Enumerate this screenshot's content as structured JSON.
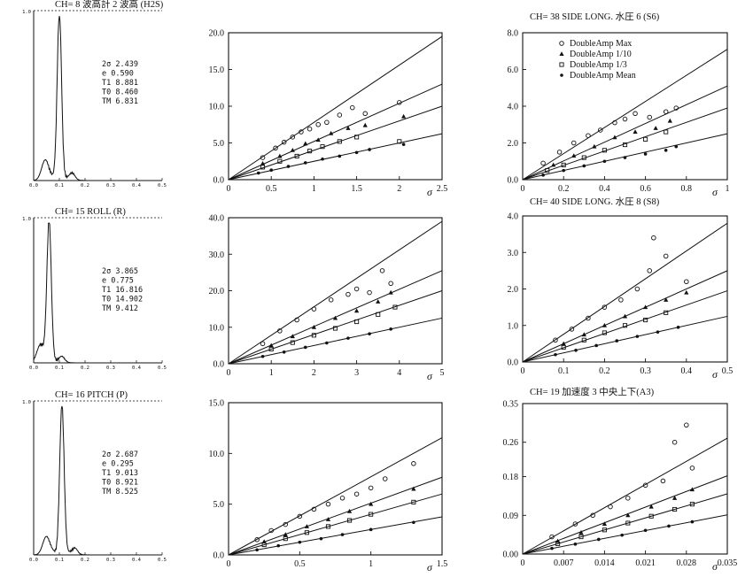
{
  "figure": {
    "spectra": [
      {
        "title": "CH= 8 波高計 2  波高 (H2S)",
        "ytop": "1.0",
        "stats": [
          "2σ 2.439",
          "e 0.590",
          "T1 8.881",
          "T0 8.460",
          "TM 6.831"
        ],
        "xticks": [
          "0.0",
          "0.1",
          "0.2",
          "0.3",
          "0.4",
          "0.5"
        ],
        "peak_freq": 0.1
      },
      {
        "title": "CH= 15 ROLL (R)",
        "ytop": "1.0",
        "stats": [
          "2σ 3.865",
          "e 0.775",
          "T1 16.816",
          "T0 14.902",
          "TM 9.412"
        ],
        "xticks": [
          "0.0",
          "0.1",
          "0.2",
          "0.3",
          "0.4",
          "0.5"
        ],
        "peak_freq": 0.06
      },
      {
        "title": "CH= 16 PITCH (P)",
        "ytop": "1.0",
        "stats": [
          "2σ 2.687",
          "e 0.295",
          "T1 9.013",
          "T0 8.921",
          "TM 8.525"
        ],
        "xticks": [
          "0.0",
          "0.1",
          "0.2",
          "0.3",
          "0.4",
          "0.5"
        ],
        "peak_freq": 0.11
      }
    ],
    "legend": [
      "DoubleAmp Max",
      "DoubleAmp 1/10",
      "DoubleAmp 1/3",
      "DoubleAmp Mean"
    ]
  },
  "chart_data": [
    {
      "type": "scatter",
      "title": "",
      "xlabel": "σ",
      "xlim": [
        0,
        2.5
      ],
      "ylim": [
        0,
        20
      ],
      "xticks": [
        "0",
        "0.5",
        "1",
        "1.5",
        "2",
        "2.5"
      ],
      "yticks": [
        "0.0",
        "5.0",
        "10.0",
        "15.0",
        "20.0"
      ],
      "lines": [
        {
          "name": "DoubleAmp Max",
          "slope": 7.8
        },
        {
          "name": "DoubleAmp 1/10",
          "slope": 5.2
        },
        {
          "name": "DoubleAmp 1/3",
          "slope": 4.0
        },
        {
          "name": "DoubleAmp Mean",
          "slope": 2.5
        }
      ],
      "series": [
        {
          "name": "DoubleAmp Max",
          "marker": "circle-open",
          "x": [
            0.4,
            0.55,
            0.65,
            0.75,
            0.85,
            0.95,
            1.05,
            1.15,
            1.3,
            1.45,
            1.6,
            2.0
          ],
          "y": [
            3.0,
            4.3,
            5.1,
            5.8,
            6.5,
            6.9,
            7.5,
            7.8,
            8.8,
            9.8,
            9.0,
            10.5
          ]
        },
        {
          "name": "DoubleAmp 1/10",
          "marker": "triangle",
          "x": [
            0.4,
            0.6,
            0.75,
            0.9,
            1.05,
            1.2,
            1.4,
            1.6,
            2.05
          ],
          "y": [
            2.2,
            3.2,
            4.0,
            4.9,
            5.4,
            6.3,
            7.0,
            7.4,
            8.6
          ]
        },
        {
          "name": "DoubleAmp 1/3",
          "marker": "square-open",
          "x": [
            0.4,
            0.6,
            0.8,
            0.95,
            1.1,
            1.3,
            1.5,
            2.0
          ],
          "y": [
            1.7,
            2.5,
            3.2,
            3.9,
            4.5,
            5.2,
            5.8,
            5.2
          ]
        },
        {
          "name": "DoubleAmp Mean",
          "marker": "dot",
          "x": [
            0.35,
            0.5,
            0.7,
            0.9,
            1.1,
            1.3,
            1.5,
            1.65,
            2.05
          ],
          "y": [
            0.9,
            1.3,
            1.8,
            2.3,
            2.8,
            3.2,
            3.7,
            4.1,
            4.8
          ]
        }
      ]
    },
    {
      "type": "scatter",
      "title": "CH= 38  SIDE LONG. 水圧 6 (S6)",
      "xlabel": "σ",
      "xlim": [
        0,
        1
      ],
      "ylim": [
        0,
        8
      ],
      "xticks": [
        "0",
        "0.2",
        "0.4",
        "0.6",
        "0.8",
        "1"
      ],
      "yticks": [
        "0.0",
        "2.0",
        "4.0",
        "6.0",
        "8.0"
      ],
      "lines": [
        {
          "name": "DoubleAmp Max",
          "slope": 7.1
        },
        {
          "name": "DoubleAmp 1/10",
          "slope": 5.1
        },
        {
          "name": "DoubleAmp 1/3",
          "slope": 3.9
        },
        {
          "name": "DoubleAmp Mean",
          "slope": 2.5
        }
      ],
      "series": [
        {
          "name": "DoubleAmp Max",
          "marker": "circle-open",
          "x": [
            0.1,
            0.18,
            0.25,
            0.32,
            0.38,
            0.45,
            0.5,
            0.55,
            0.62,
            0.7,
            0.75
          ],
          "y": [
            0.9,
            1.5,
            2.0,
            2.4,
            2.7,
            3.1,
            3.3,
            3.6,
            3.4,
            3.7,
            3.9
          ]
        },
        {
          "name": "DoubleAmp 1/10",
          "marker": "triangle",
          "x": [
            0.15,
            0.25,
            0.35,
            0.45,
            0.55,
            0.65,
            0.72
          ],
          "y": [
            0.8,
            1.3,
            1.8,
            2.3,
            2.6,
            2.8,
            3.2
          ]
        },
        {
          "name": "DoubleAmp 1/3",
          "marker": "square-open",
          "x": [
            0.12,
            0.2,
            0.3,
            0.4,
            0.5,
            0.6,
            0.7
          ],
          "y": [
            0.5,
            0.8,
            1.2,
            1.6,
            1.9,
            2.2,
            2.6
          ]
        },
        {
          "name": "DoubleAmp Mean",
          "marker": "dot",
          "x": [
            0.1,
            0.2,
            0.3,
            0.4,
            0.5,
            0.6,
            0.7,
            0.75
          ],
          "y": [
            0.25,
            0.5,
            0.75,
            1.0,
            1.2,
            1.4,
            1.6,
            1.8
          ]
        }
      ]
    },
    {
      "type": "scatter",
      "title": "",
      "xlabel": "σ",
      "xlim": [
        0,
        5
      ],
      "ylim": [
        0,
        40
      ],
      "xticks": [
        "0",
        "1",
        "2",
        "3",
        "4",
        "5"
      ],
      "yticks": [
        "0.0",
        "10.0",
        "20.0",
        "30.0",
        "40.0"
      ],
      "lines": [
        {
          "name": "DoubleAmp Max",
          "slope": 7.8
        },
        {
          "name": "DoubleAmp 1/10",
          "slope": 5.1
        },
        {
          "name": "DoubleAmp 1/3",
          "slope": 4.0
        },
        {
          "name": "DoubleAmp Mean",
          "slope": 2.5
        }
      ],
      "series": [
        {
          "name": "DoubleAmp Max",
          "marker": "circle-open",
          "x": [
            0.8,
            1.2,
            1.6,
            2.0,
            2.4,
            2.8,
            3.0,
            3.3,
            3.6,
            3.8
          ],
          "y": [
            5.5,
            9.0,
            12.0,
            15.0,
            17.5,
            19.0,
            20.5,
            19.5,
            25.5,
            22.0
          ]
        },
        {
          "name": "DoubleAmp 1/10",
          "marker": "triangle",
          "x": [
            1.0,
            1.5,
            2.0,
            2.5,
            3.0,
            3.5,
            3.8
          ],
          "y": [
            5.0,
            7.5,
            10.0,
            12.5,
            14.5,
            17.0,
            19.5
          ]
        },
        {
          "name": "DoubleAmp 1/3",
          "marker": "square-open",
          "x": [
            1.0,
            1.5,
            2.0,
            2.5,
            3.0,
            3.5,
            3.9
          ],
          "y": [
            4.0,
            5.8,
            7.8,
            9.7,
            11.5,
            13.5,
            15.5
          ]
        },
        {
          "name": "DoubleAmp Mean",
          "marker": "dot",
          "x": [
            0.8,
            1.3,
            1.8,
            2.3,
            2.8,
            3.3,
            3.8
          ],
          "y": [
            2.0,
            3.2,
            4.5,
            5.7,
            7.0,
            8.2,
            9.5
          ]
        }
      ]
    },
    {
      "type": "scatter",
      "title": "CH= 40  SIDE LONG. 水圧 8 (S8)",
      "xlabel": "σ",
      "xlim": [
        0,
        0.5
      ],
      "ylim": [
        0,
        4
      ],
      "xticks": [
        "0",
        "0.1",
        "0.2",
        "0.3",
        "0.4",
        "0.5"
      ],
      "yticks": [
        "0.0",
        "1.0",
        "2.0",
        "3.0",
        "4.0"
      ],
      "lines": [
        {
          "name": "DoubleAmp Max",
          "slope": 7.6
        },
        {
          "name": "DoubleAmp 1/10",
          "slope": 5.0
        },
        {
          "name": "DoubleAmp 1/3",
          "slope": 3.9
        },
        {
          "name": "DoubleAmp Mean",
          "slope": 2.5
        }
      ],
      "series": [
        {
          "name": "DoubleAmp Max",
          "marker": "circle-open",
          "x": [
            0.08,
            0.12,
            0.16,
            0.2,
            0.24,
            0.28,
            0.31,
            0.32,
            0.35,
            0.4
          ],
          "y": [
            0.6,
            0.9,
            1.2,
            1.5,
            1.7,
            2.0,
            2.5,
            3.4,
            2.9,
            2.2
          ]
        },
        {
          "name": "DoubleAmp 1/10",
          "marker": "triangle",
          "x": [
            0.1,
            0.15,
            0.2,
            0.25,
            0.3,
            0.35,
            0.4
          ],
          "y": [
            0.5,
            0.75,
            1.0,
            1.25,
            1.5,
            1.7,
            1.9
          ]
        },
        {
          "name": "DoubleAmp 1/3",
          "marker": "square-open",
          "x": [
            0.1,
            0.15,
            0.2,
            0.25,
            0.3,
            0.35
          ],
          "y": [
            0.4,
            0.6,
            0.8,
            1.0,
            1.15,
            1.35
          ]
        },
        {
          "name": "DoubleAmp Mean",
          "marker": "dot",
          "x": [
            0.08,
            0.13,
            0.18,
            0.23,
            0.28,
            0.33,
            0.38
          ],
          "y": [
            0.2,
            0.32,
            0.45,
            0.58,
            0.7,
            0.82,
            0.95
          ]
        }
      ]
    },
    {
      "type": "scatter",
      "title": "",
      "xlabel": "σ",
      "xlim": [
        0,
        1.5
      ],
      "ylim": [
        0,
        15
      ],
      "xticks": [
        "0",
        "0.5",
        "1",
        "1.5"
      ],
      "yticks": [
        "0.0",
        "5.0",
        "10.0",
        "15.0"
      ],
      "lines": [
        {
          "name": "DoubleAmp Max",
          "slope": 7.7
        },
        {
          "name": "DoubleAmp 1/10",
          "slope": 5.1
        },
        {
          "name": "DoubleAmp 1/3",
          "slope": 4.0
        },
        {
          "name": "DoubleAmp Mean",
          "slope": 2.5
        }
      ],
      "series": [
        {
          "name": "DoubleAmp Max",
          "marker": "circle-open",
          "x": [
            0.2,
            0.3,
            0.4,
            0.5,
            0.6,
            0.7,
            0.8,
            0.9,
            1.0,
            1.1,
            1.3
          ],
          "y": [
            1.5,
            2.4,
            3.0,
            3.8,
            4.5,
            5.0,
            5.6,
            6.0,
            6.6,
            7.5,
            9.0
          ]
        },
        {
          "name": "DoubleAmp 1/10",
          "marker": "triangle",
          "x": [
            0.25,
            0.4,
            0.55,
            0.7,
            0.85,
            1.0,
            1.3
          ],
          "y": [
            1.3,
            2.0,
            2.8,
            3.5,
            4.3,
            5.0,
            6.5
          ]
        },
        {
          "name": "DoubleAmp 1/3",
          "marker": "square-open",
          "x": [
            0.25,
            0.4,
            0.55,
            0.7,
            0.85,
            1.0,
            1.3
          ],
          "y": [
            1.0,
            1.6,
            2.2,
            2.8,
            3.4,
            4.0,
            5.2
          ]
        },
        {
          "name": "DoubleAmp Mean",
          "marker": "dot",
          "x": [
            0.2,
            0.35,
            0.5,
            0.65,
            0.8,
            1.0,
            1.3
          ],
          "y": [
            0.5,
            0.9,
            1.25,
            1.6,
            2.0,
            2.5,
            3.2
          ]
        }
      ]
    },
    {
      "type": "scatter",
      "title": "CH= 19  加速度 3   中央上下(A3)",
      "xlabel": "σ",
      "xlim": [
        0,
        0.035
      ],
      "ylim": [
        0,
        0.35
      ],
      "xticks": [
        "0",
        "0.007",
        "0.014",
        "0.021",
        "0.028",
        "0.035"
      ],
      "yticks": [
        "0.00",
        "0.09",
        "0.18",
        "0.26",
        "0.35"
      ],
      "lines": [
        {
          "name": "DoubleAmp Max",
          "slope": 7.7
        },
        {
          "name": "DoubleAmp 1/10",
          "slope": 5.2
        },
        {
          "name": "DoubleAmp 1/3",
          "slope": 4.0
        },
        {
          "name": "DoubleAmp Mean",
          "slope": 2.6
        }
      ],
      "series": [
        {
          "name": "DoubleAmp Max",
          "marker": "circle-open",
          "x": [
            0.005,
            0.009,
            0.012,
            0.015,
            0.018,
            0.021,
            0.024,
            0.026,
            0.028,
            0.029
          ],
          "y": [
            0.04,
            0.07,
            0.09,
            0.11,
            0.13,
            0.16,
            0.17,
            0.26,
            0.3,
            0.2
          ]
        },
        {
          "name": "DoubleAmp 1/10",
          "marker": "triangle",
          "x": [
            0.006,
            0.01,
            0.014,
            0.018,
            0.022,
            0.026,
            0.029
          ],
          "y": [
            0.03,
            0.05,
            0.07,
            0.09,
            0.11,
            0.13,
            0.15
          ]
        },
        {
          "name": "DoubleAmp 1/3",
          "marker": "square-open",
          "x": [
            0.006,
            0.01,
            0.014,
            0.018,
            0.022,
            0.026,
            0.029
          ],
          "y": [
            0.024,
            0.04,
            0.056,
            0.072,
            0.088,
            0.104,
            0.116
          ]
        },
        {
          "name": "DoubleAmp Mean",
          "marker": "dot",
          "x": [
            0.005,
            0.009,
            0.013,
            0.017,
            0.021,
            0.025,
            0.029
          ],
          "y": [
            0.013,
            0.023,
            0.034,
            0.044,
            0.055,
            0.065,
            0.075
          ]
        }
      ]
    }
  ]
}
